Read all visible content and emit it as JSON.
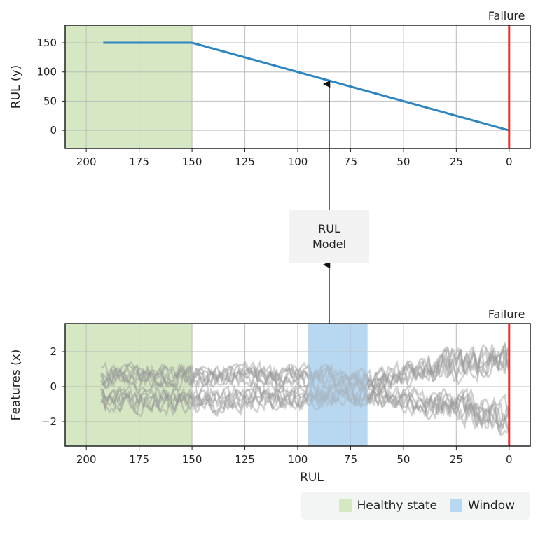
{
  "chart_data": [
    {
      "type": "line",
      "ylabel": "RUL (y)",
      "xlabel": "",
      "xlim": [
        210,
        -10
      ],
      "ylim": [
        -31,
        180
      ],
      "xticks": [
        200,
        175,
        150,
        125,
        100,
        75,
        50,
        25,
        0
      ],
      "yticks": [
        0,
        50,
        100,
        150
      ],
      "grid": true,
      "series": [
        {
          "x": [
            192,
            150,
            0
          ],
          "y": [
            150,
            150,
            0
          ],
          "color": "#2e86c1"
        }
      ],
      "annotations": {
        "failure_label": "Failure",
        "failure_x": 0,
        "failure_color": "#e8302a"
      },
      "regions": [
        {
          "from": 210,
          "to": 150,
          "color": "#d5e8c3"
        }
      ]
    },
    {
      "type": "line",
      "ylabel": "Features (x)",
      "xlabel": "RUL",
      "xlim": [
        210,
        -10
      ],
      "ylim": [
        -3.4,
        3.6
      ],
      "xticks": [
        200,
        175,
        150,
        125,
        100,
        75,
        50,
        25,
        0
      ],
      "yticks": [
        -2,
        0,
        2
      ],
      "ytick_labels": [
        "−2",
        "0",
        "2"
      ],
      "grid": true,
      "series_color": "#999999",
      "annotations": {
        "failure_label": "Failure",
        "failure_x": 0,
        "failure_color": "#e8302a"
      },
      "regions": [
        {
          "from": 210,
          "to": 150,
          "color": "#d5e8c3"
        },
        {
          "from": 95,
          "to": 67,
          "color": "#b8d7f0"
        }
      ]
    }
  ],
  "model": {
    "line1": "RUL",
    "line2": "Model"
  },
  "legend": [
    {
      "label": "Healthy state",
      "color": "#d5e8c3"
    },
    {
      "label": "Window",
      "color": "#b8d7f0"
    }
  ]
}
